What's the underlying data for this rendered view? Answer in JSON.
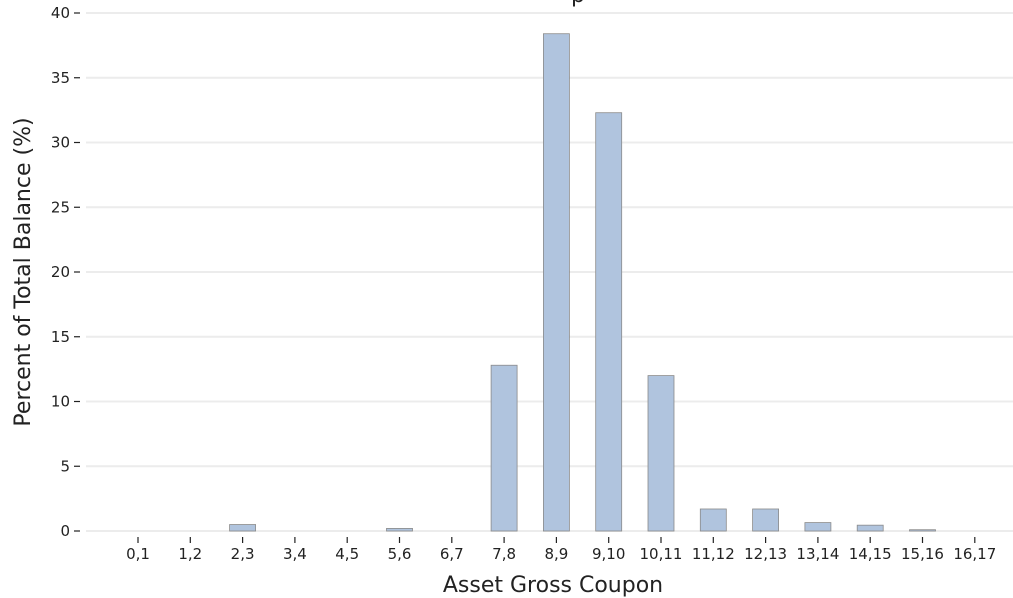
{
  "chart_data": {
    "type": "bar",
    "title": "p",
    "xlabel": "Asset Gross Coupon",
    "ylabel": "Percent of Total Balance (%)",
    "categories": [
      "0,1",
      "1,2",
      "2,3",
      "3,4",
      "4,5",
      "5,6",
      "6,7",
      "7,8",
      "8,9",
      "9,10",
      "10,11",
      "11,12",
      "12,13",
      "13,14",
      "14,15",
      "15,16",
      "16,17"
    ],
    "values": [
      0,
      0,
      0.5,
      0,
      0,
      0.2,
      0,
      12.8,
      38.4,
      32.3,
      12.0,
      1.7,
      1.7,
      0.65,
      0.45,
      0.1,
      0
    ],
    "ylim": [
      0,
      40
    ],
    "yticks": [
      "0",
      "5",
      "10",
      "15",
      "20",
      "25",
      "30",
      "35",
      "40"
    ],
    "grid": true,
    "colors": {
      "bar_fill": "#b0c4de",
      "bar_edge": "#8a8a8a",
      "grid": "#ececec",
      "text": "#222222"
    }
  }
}
